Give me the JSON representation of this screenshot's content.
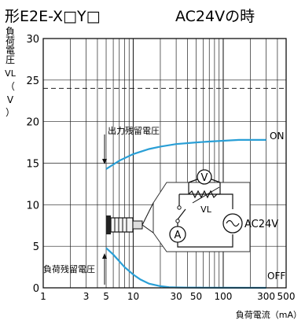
{
  "chart_data": {
    "type": "line",
    "title": "形E2E-X□Y□",
    "subtitle": "AC24Vの時",
    "ylabel": [
      "負",
      "荷",
      "電",
      "圧",
      "VL",
      "（",
      "V",
      "）"
    ],
    "xlabel": "負荷電流（mA）",
    "x_scale": "log",
    "xlim": [
      1,
      500
    ],
    "ylim": [
      0,
      30
    ],
    "x_ticks": [
      1,
      3,
      5,
      10,
      30,
      50,
      100,
      300,
      500
    ],
    "x_tick_labels": [
      "1",
      "3",
      "5",
      "10",
      "30",
      "50",
      "100",
      "300",
      "500"
    ],
    "y_ticks": [
      0,
      5,
      10,
      15,
      20,
      25,
      30
    ],
    "y_tick_labels": [
      "0",
      "5",
      "10",
      "15",
      "20",
      "25",
      "30"
    ],
    "reference_line": 24,
    "series": [
      {
        "name": "出力残留電圧",
        "state": "ON",
        "x": [
          5,
          7,
          10,
          15,
          20,
          30,
          50,
          70,
          100,
          150,
          200,
          300
        ],
        "y": [
          14.3,
          15.3,
          16.1,
          16.7,
          17.0,
          17.3,
          17.5,
          17.6,
          17.7,
          17.8,
          17.8,
          17.8
        ]
      },
      {
        "name": "負荷残留電圧",
        "state": "OFF",
        "x": [
          5,
          6,
          7,
          8,
          10,
          12,
          15,
          20,
          25,
          30,
          40,
          60,
          100,
          300
        ],
        "y": [
          4.8,
          4.0,
          3.2,
          2.5,
          1.6,
          1.0,
          0.5,
          0.2,
          0.08,
          0.05,
          0.03,
          0.02,
          0.01,
          0.0
        ]
      }
    ],
    "grid": true,
    "circuit": {
      "voltmeter": "V",
      "ammeter": "A",
      "load_voltage": "VL",
      "source": "AC24V"
    }
  }
}
